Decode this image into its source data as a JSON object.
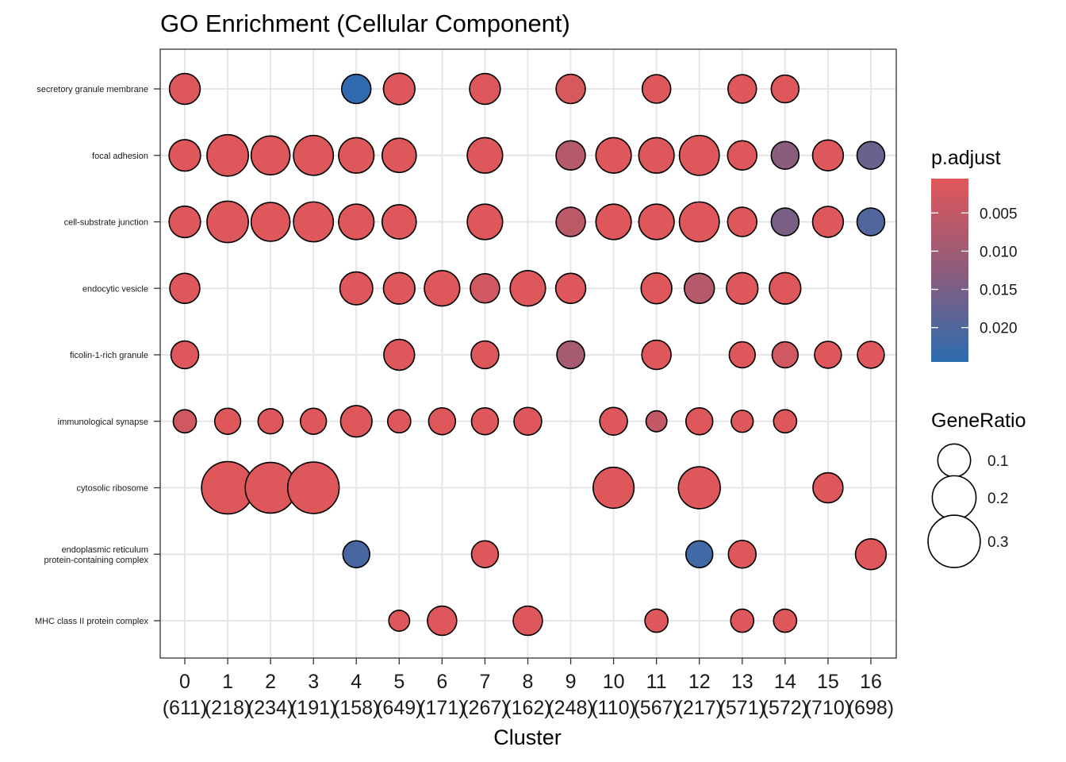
{
  "chart_data": {
    "type": "scatter",
    "title": "GO Enrichment (Cellular Component)",
    "xlabel": "Cluster",
    "ylabel": "",
    "x_categories": [
      {
        "cluster": "0",
        "count": "(611)"
      },
      {
        "cluster": "1",
        "count": "(218)"
      },
      {
        "cluster": "2",
        "count": "(234)"
      },
      {
        "cluster": "3",
        "count": "(191)"
      },
      {
        "cluster": "4",
        "count": "(158)"
      },
      {
        "cluster": "5",
        "count": "(649)"
      },
      {
        "cluster": "6",
        "count": "(171)"
      },
      {
        "cluster": "7",
        "count": "(267)"
      },
      {
        "cluster": "8",
        "count": "(162)"
      },
      {
        "cluster": "9",
        "count": "(248)"
      },
      {
        "cluster": "10",
        "count": "(110)"
      },
      {
        "cluster": "11",
        "count": "(567)"
      },
      {
        "cluster": "12",
        "count": "(217)"
      },
      {
        "cluster": "13",
        "count": "(571)"
      },
      {
        "cluster": "14",
        "count": "(572)"
      },
      {
        "cluster": "15",
        "count": "(710)"
      },
      {
        "cluster": "16",
        "count": "(698)"
      }
    ],
    "y_categories": [
      [
        "secretory granule membrane"
      ],
      [
        "focal adhesion"
      ],
      [
        "cell-substrate junction"
      ],
      [
        "endocytic vesicle"
      ],
      [
        "ficolin-1-rich granule"
      ],
      [
        "immunological synapse"
      ],
      [
        "cytosolic ribosome"
      ],
      [
        "endoplasmic reticulum",
        "protein-containing complex"
      ],
      [
        "MHC class II protein complex"
      ]
    ],
    "points": [
      {
        "x": 0,
        "y": 0,
        "gene_ratio": 0.085,
        "p_adjust": 0.001
      },
      {
        "x": 4,
        "y": 0,
        "gene_ratio": 0.075,
        "p_adjust": 0.024
      },
      {
        "x": 5,
        "y": 0,
        "gene_ratio": 0.09,
        "p_adjust": 0.001
      },
      {
        "x": 7,
        "y": 0,
        "gene_ratio": 0.085,
        "p_adjust": 0.001
      },
      {
        "x": 9,
        "y": 0,
        "gene_ratio": 0.075,
        "p_adjust": 0.002
      },
      {
        "x": 11,
        "y": 0,
        "gene_ratio": 0.07,
        "p_adjust": 0.001
      },
      {
        "x": 13,
        "y": 0,
        "gene_ratio": 0.07,
        "p_adjust": 0.001
      },
      {
        "x": 14,
        "y": 0,
        "gene_ratio": 0.065,
        "p_adjust": 0.001
      },
      {
        "x": 0,
        "y": 1,
        "gene_ratio": 0.09,
        "p_adjust": 0.001
      },
      {
        "x": 1,
        "y": 1,
        "gene_ratio": 0.175,
        "p_adjust": 0.001
      },
      {
        "x": 2,
        "y": 1,
        "gene_ratio": 0.15,
        "p_adjust": 0.001
      },
      {
        "x": 3,
        "y": 1,
        "gene_ratio": 0.16,
        "p_adjust": 0.001
      },
      {
        "x": 4,
        "y": 1,
        "gene_ratio": 0.12,
        "p_adjust": 0.001
      },
      {
        "x": 5,
        "y": 1,
        "gene_ratio": 0.11,
        "p_adjust": 0.001
      },
      {
        "x": 7,
        "y": 1,
        "gene_ratio": 0.12,
        "p_adjust": 0.001
      },
      {
        "x": 9,
        "y": 1,
        "gene_ratio": 0.075,
        "p_adjust": 0.007
      },
      {
        "x": 10,
        "y": 1,
        "gene_ratio": 0.12,
        "p_adjust": 0.001
      },
      {
        "x": 11,
        "y": 1,
        "gene_ratio": 0.12,
        "p_adjust": 0.001
      },
      {
        "x": 12,
        "y": 1,
        "gene_ratio": 0.16,
        "p_adjust": 0.001
      },
      {
        "x": 13,
        "y": 1,
        "gene_ratio": 0.075,
        "p_adjust": 0.001
      },
      {
        "x": 14,
        "y": 1,
        "gene_ratio": 0.065,
        "p_adjust": 0.013
      },
      {
        "x": 15,
        "y": 1,
        "gene_ratio": 0.085,
        "p_adjust": 0.001
      },
      {
        "x": 16,
        "y": 1,
        "gene_ratio": 0.065,
        "p_adjust": 0.017
      },
      {
        "x": 0,
        "y": 2,
        "gene_ratio": 0.09,
        "p_adjust": 0.001
      },
      {
        "x": 1,
        "y": 2,
        "gene_ratio": 0.175,
        "p_adjust": 0.001
      },
      {
        "x": 2,
        "y": 2,
        "gene_ratio": 0.15,
        "p_adjust": 0.001
      },
      {
        "x": 3,
        "y": 2,
        "gene_ratio": 0.16,
        "p_adjust": 0.001
      },
      {
        "x": 4,
        "y": 2,
        "gene_ratio": 0.12,
        "p_adjust": 0.001
      },
      {
        "x": 5,
        "y": 2,
        "gene_ratio": 0.11,
        "p_adjust": 0.001
      },
      {
        "x": 7,
        "y": 2,
        "gene_ratio": 0.12,
        "p_adjust": 0.001
      },
      {
        "x": 9,
        "y": 2,
        "gene_ratio": 0.075,
        "p_adjust": 0.006
      },
      {
        "x": 10,
        "y": 2,
        "gene_ratio": 0.12,
        "p_adjust": 0.001
      },
      {
        "x": 11,
        "y": 2,
        "gene_ratio": 0.12,
        "p_adjust": 0.001
      },
      {
        "x": 12,
        "y": 2,
        "gene_ratio": 0.16,
        "p_adjust": 0.001
      },
      {
        "x": 13,
        "y": 2,
        "gene_ratio": 0.075,
        "p_adjust": 0.001
      },
      {
        "x": 14,
        "y": 2,
        "gene_ratio": 0.065,
        "p_adjust": 0.015
      },
      {
        "x": 15,
        "y": 2,
        "gene_ratio": 0.085,
        "p_adjust": 0.001
      },
      {
        "x": 16,
        "y": 2,
        "gene_ratio": 0.065,
        "p_adjust": 0.02
      },
      {
        "x": 0,
        "y": 3,
        "gene_ratio": 0.08,
        "p_adjust": 0.001
      },
      {
        "x": 4,
        "y": 3,
        "gene_ratio": 0.1,
        "p_adjust": 0.001
      },
      {
        "x": 5,
        "y": 3,
        "gene_ratio": 0.09,
        "p_adjust": 0.001
      },
      {
        "x": 6,
        "y": 3,
        "gene_ratio": 0.12,
        "p_adjust": 0.001
      },
      {
        "x": 7,
        "y": 3,
        "gene_ratio": 0.075,
        "p_adjust": 0.003
      },
      {
        "x": 8,
        "y": 3,
        "gene_ratio": 0.12,
        "p_adjust": 0.001
      },
      {
        "x": 9,
        "y": 3,
        "gene_ratio": 0.08,
        "p_adjust": 0.001
      },
      {
        "x": 11,
        "y": 3,
        "gene_ratio": 0.085,
        "p_adjust": 0.001
      },
      {
        "x": 12,
        "y": 3,
        "gene_ratio": 0.08,
        "p_adjust": 0.007
      },
      {
        "x": 13,
        "y": 3,
        "gene_ratio": 0.09,
        "p_adjust": 0.001
      },
      {
        "x": 14,
        "y": 3,
        "gene_ratio": 0.09,
        "p_adjust": 0.001
      },
      {
        "x": 0,
        "y": 4,
        "gene_ratio": 0.065,
        "p_adjust": 0.001
      },
      {
        "x": 5,
        "y": 4,
        "gene_ratio": 0.085,
        "p_adjust": 0.001
      },
      {
        "x": 7,
        "y": 4,
        "gene_ratio": 0.065,
        "p_adjust": 0.001
      },
      {
        "x": 9,
        "y": 4,
        "gene_ratio": 0.065,
        "p_adjust": 0.009
      },
      {
        "x": 11,
        "y": 4,
        "gene_ratio": 0.075,
        "p_adjust": 0.001
      },
      {
        "x": 13,
        "y": 4,
        "gene_ratio": 0.055,
        "p_adjust": 0.001
      },
      {
        "x": 14,
        "y": 4,
        "gene_ratio": 0.055,
        "p_adjust": 0.003
      },
      {
        "x": 15,
        "y": 4,
        "gene_ratio": 0.06,
        "p_adjust": 0.001
      },
      {
        "x": 16,
        "y": 4,
        "gene_ratio": 0.06,
        "p_adjust": 0.001
      },
      {
        "x": 0,
        "y": 5,
        "gene_ratio": 0.04,
        "p_adjust": 0.003
      },
      {
        "x": 1,
        "y": 5,
        "gene_ratio": 0.055,
        "p_adjust": 0.001
      },
      {
        "x": 2,
        "y": 5,
        "gene_ratio": 0.05,
        "p_adjust": 0.001
      },
      {
        "x": 3,
        "y": 5,
        "gene_ratio": 0.055,
        "p_adjust": 0.001
      },
      {
        "x": 4,
        "y": 5,
        "gene_ratio": 0.09,
        "p_adjust": 0.001
      },
      {
        "x": 5,
        "y": 5,
        "gene_ratio": 0.04,
        "p_adjust": 0.001
      },
      {
        "x": 6,
        "y": 5,
        "gene_ratio": 0.06,
        "p_adjust": 0.001
      },
      {
        "x": 7,
        "y": 5,
        "gene_ratio": 0.06,
        "p_adjust": 0.001
      },
      {
        "x": 8,
        "y": 5,
        "gene_ratio": 0.065,
        "p_adjust": 0.001
      },
      {
        "x": 10,
        "y": 5,
        "gene_ratio": 0.065,
        "p_adjust": 0.001
      },
      {
        "x": 11,
        "y": 5,
        "gene_ratio": 0.03,
        "p_adjust": 0.005
      },
      {
        "x": 12,
        "y": 5,
        "gene_ratio": 0.06,
        "p_adjust": 0.001
      },
      {
        "x": 13,
        "y": 5,
        "gene_ratio": 0.035,
        "p_adjust": 0.001
      },
      {
        "x": 14,
        "y": 5,
        "gene_ratio": 0.04,
        "p_adjust": 0.001
      },
      {
        "x": 1,
        "y": 6,
        "gene_ratio": 0.3,
        "p_adjust": 0.001
      },
      {
        "x": 2,
        "y": 6,
        "gene_ratio": 0.28,
        "p_adjust": 0.001
      },
      {
        "x": 3,
        "y": 6,
        "gene_ratio": 0.29,
        "p_adjust": 0.001
      },
      {
        "x": 10,
        "y": 6,
        "gene_ratio": 0.17,
        "p_adjust": 0.001
      },
      {
        "x": 12,
        "y": 6,
        "gene_ratio": 0.18,
        "p_adjust": 0.001
      },
      {
        "x": 15,
        "y": 6,
        "gene_ratio": 0.08,
        "p_adjust": 0.001
      },
      {
        "x": 4,
        "y": 7,
        "gene_ratio": 0.06,
        "p_adjust": 0.021
      },
      {
        "x": 7,
        "y": 7,
        "gene_ratio": 0.06,
        "p_adjust": 0.001
      },
      {
        "x": 12,
        "y": 7,
        "gene_ratio": 0.06,
        "p_adjust": 0.022
      },
      {
        "x": 13,
        "y": 7,
        "gene_ratio": 0.065,
        "p_adjust": 0.001
      },
      {
        "x": 16,
        "y": 7,
        "gene_ratio": 0.085,
        "p_adjust": 0.001
      },
      {
        "x": 5,
        "y": 8,
        "gene_ratio": 0.03,
        "p_adjust": 0.001
      },
      {
        "x": 6,
        "y": 8,
        "gene_ratio": 0.075,
        "p_adjust": 0.001
      },
      {
        "x": 8,
        "y": 8,
        "gene_ratio": 0.075,
        "p_adjust": 0.001
      },
      {
        "x": 11,
        "y": 8,
        "gene_ratio": 0.04,
        "p_adjust": 0.001
      },
      {
        "x": 13,
        "y": 8,
        "gene_ratio": 0.04,
        "p_adjust": 0.001
      },
      {
        "x": 14,
        "y": 8,
        "gene_ratio": 0.04,
        "p_adjust": 0.001
      }
    ],
    "color_scale": {
      "title": "p.adjust",
      "low_color": "#E15759",
      "mid_color": "#8E5C7A",
      "high_color": "#2B6CB0",
      "domain": [
        0.0005,
        0.0245
      ],
      "ticks": [
        {
          "value": 0.005,
          "label": "0.005"
        },
        {
          "value": 0.01,
          "label": "0.010"
        },
        {
          "value": 0.015,
          "label": "0.015"
        },
        {
          "value": 0.02,
          "label": "0.020"
        }
      ]
    },
    "size_scale": {
      "title": "GeneRatio",
      "legend": [
        {
          "value": 0.1,
          "label": "0.1"
        },
        {
          "value": 0.2,
          "label": "0.2"
        },
        {
          "value": 0.3,
          "label": "0.3"
        }
      ]
    },
    "grid": true,
    "legend_position": "right"
  }
}
